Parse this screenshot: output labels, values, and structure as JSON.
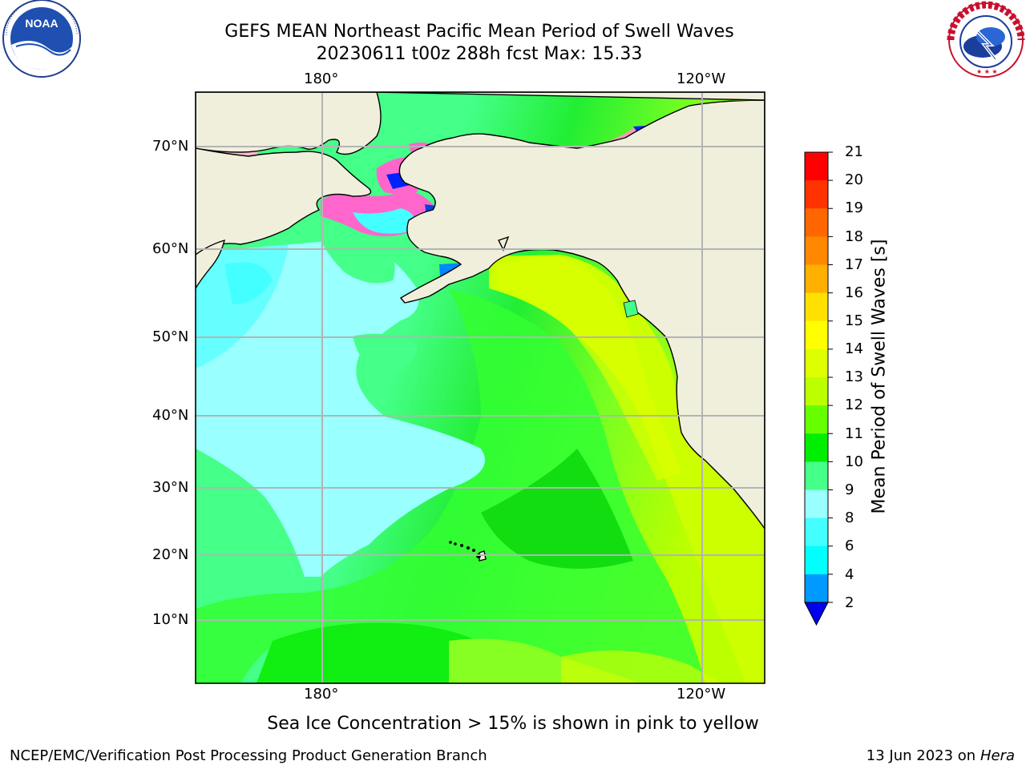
{
  "header": {
    "title_line1": "GEFS MEAN Northeast Pacific Mean Period of Swell Waves",
    "title_line2": "20230611 t00z 288h fcst   Max: 15.33"
  },
  "logos": {
    "left": "noaa-logo",
    "right": "nws-logo"
  },
  "map": {
    "top_lon_labels": [
      "180°",
      "120°W"
    ],
    "bottom_lon_labels": [
      "180°",
      "120°W"
    ],
    "lat_labels": [
      "70°N",
      "60°N",
      "50°N",
      "40°N",
      "30°N",
      "20°N",
      "10°N"
    ],
    "land_color": "#efefdc",
    "grid_color": "#b4b4b4"
  },
  "colorbar": {
    "title": "Mean Period of Swell Waves [s]",
    "labels": [
      "21",
      "20",
      "19",
      "18",
      "17",
      "16",
      "15",
      "14",
      "13",
      "12",
      "11",
      "10",
      "9",
      "8",
      "6",
      "4",
      "2"
    ],
    "colors": [
      "#ff0000",
      "#ff3300",
      "#ff6600",
      "#ff8800",
      "#ffb000",
      "#ffe000",
      "#ffff00",
      "#ddff00",
      "#bbff00",
      "#66ff00",
      "#00ee00",
      "#44ff88",
      "#99ffff",
      "#44ffff",
      "#00ffff",
      "#0099ff",
      "#0033ff"
    ],
    "extend_color": "#0000ee"
  },
  "footnote": "Sea Ice Concentration > 15% is shown in pink to yellow",
  "credits": {
    "left": "NCEP/EMC/Verification Post Processing Product Generation Branch",
    "right_prefix": "13 Jun 2023 on",
    "right_host": "Hera"
  }
}
